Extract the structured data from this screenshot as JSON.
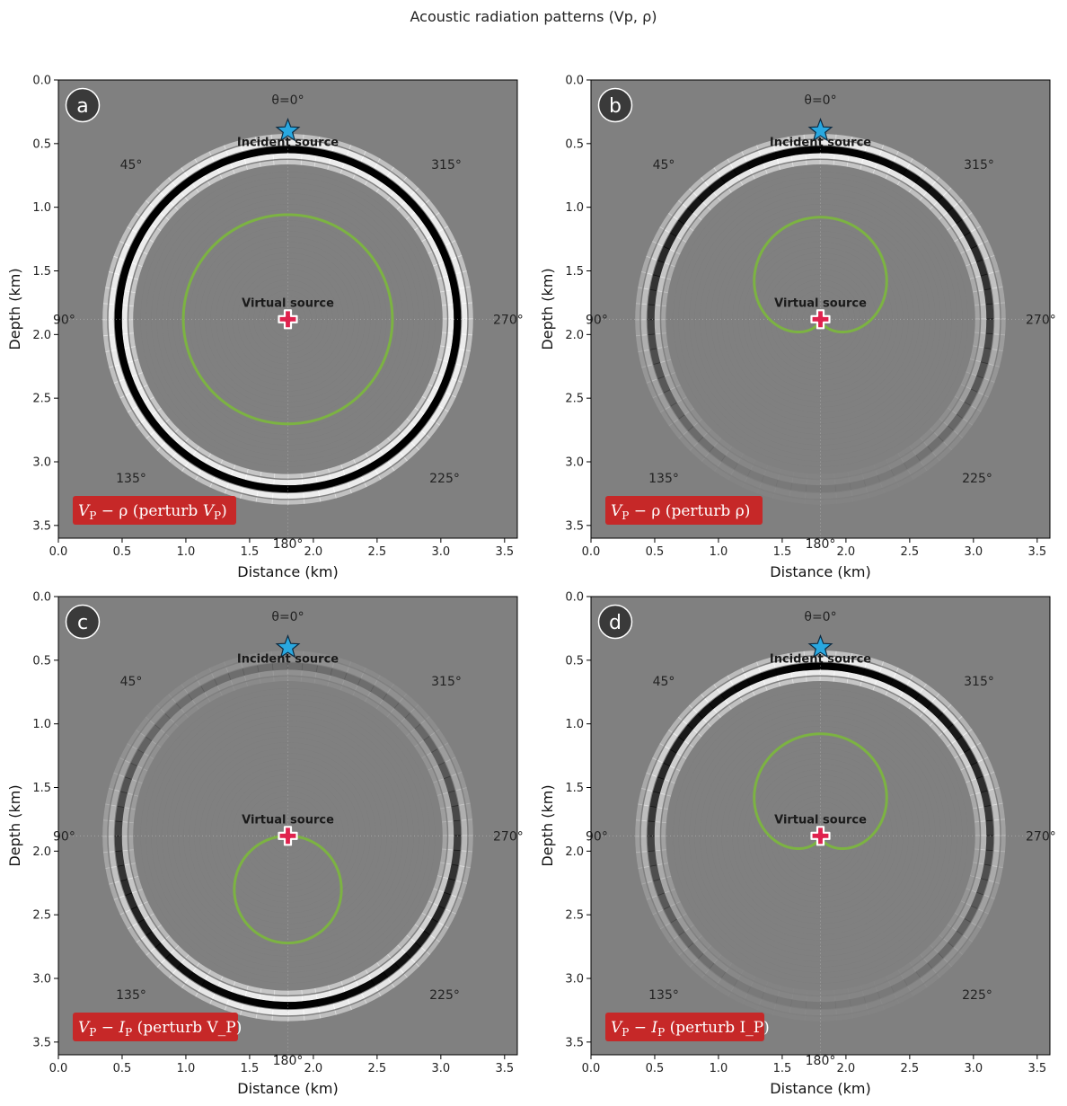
{
  "figure": {
    "title": "Acoustic radiation patterns (Vp, ρ)",
    "xlabel": "Distance (km)",
    "ylabel": "Depth (km)",
    "xticks": [
      "0.0",
      "0.5",
      "1.0",
      "1.5",
      "2.0",
      "2.5",
      "3.0",
      "3.5"
    ],
    "yticks": [
      "0.0",
      "0.5",
      "1.0",
      "1.5",
      "2.0",
      "2.5",
      "3.0",
      "3.5"
    ],
    "colors": {
      "background": "#808080",
      "pattern": "#7cb342",
      "incident_star": "#29a8e0",
      "virtual_cross": "#e0224e",
      "caption_box": "#c62828",
      "letter_badge": "#3a3a3a"
    }
  },
  "chart_data": [
    {
      "type": "radiation-pattern",
      "panel": "a",
      "caption": "V_P − ρ (perturb V_P)",
      "caption_parts": {
        "p1": "V",
        "s1": "P",
        "p2": " − ρ  (perturb ",
        "p3": "V",
        "s3": "P",
        "p4": ")"
      },
      "xlim": [
        0,
        3.6
      ],
      "ylim": [
        3.6,
        0
      ],
      "incident_source": {
        "x": 1.8,
        "depth": 0.4,
        "label": "Incident source"
      },
      "virtual_source": {
        "x": 1.8,
        "depth": 1.88,
        "label": "Virtual source"
      },
      "angle_labels": {
        "t0": "θ=0°",
        "t45": "45°",
        "t90": "90°",
        "t135": "135°",
        "t180": "180°",
        "t225": "225°",
        "t270": "270°",
        "t315": "315°"
      },
      "wavefront_radius_km": 1.33,
      "pattern_function": "isotropic",
      "pattern_radius_km": 0.82,
      "wavefront_amplitude_function": "isotropic",
      "pattern": {
        "theta_deg": [
          0,
          45,
          90,
          135,
          180,
          225,
          270,
          315
        ],
        "amplitude": [
          1,
          1,
          1,
          1,
          1,
          1,
          1,
          1
        ]
      }
    },
    {
      "type": "radiation-pattern",
      "panel": "b",
      "caption": "V_P − ρ (perturb ρ)",
      "caption_parts": {
        "p1": "V",
        "s1": "P",
        "p2": " − ρ  (perturb ρ)",
        "p3": "",
        "s3": "",
        "p4": ""
      },
      "xlim": [
        0,
        3.6
      ],
      "ylim": [
        3.6,
        0
      ],
      "incident_source": {
        "x": 1.8,
        "depth": 0.4,
        "label": "Incident source"
      },
      "virtual_source": {
        "x": 1.8,
        "depth": 1.88,
        "label": "Virtual source"
      },
      "angle_labels": {
        "t0": "θ=0°",
        "t45": "45°",
        "t90": "90°",
        "t135": "135°",
        "t180": "180°",
        "t225": "225°",
        "t270": "270°",
        "t315": "315°"
      },
      "wavefront_radius_km": 1.33,
      "pattern_function": "cardioid-up",
      "pattern_radius_km": 0.8,
      "wavefront_amplitude_function": "cardioid-up",
      "pattern": {
        "theta_deg": [
          0,
          45,
          90,
          135,
          180,
          225,
          270,
          315
        ],
        "amplitude": [
          1.0,
          0.85,
          0.5,
          0.15,
          0.0,
          0.15,
          0.5,
          0.85
        ]
      }
    },
    {
      "type": "radiation-pattern",
      "panel": "c",
      "caption": "V_P − I_P (perturb V_P)",
      "caption_parts": {
        "p1": "V",
        "s1": "P",
        "p2": " − ",
        "p3": "I",
        "s3": "P",
        "p4": "  (perturb V_P)"
      },
      "xlim": [
        0,
        3.6
      ],
      "ylim": [
        3.6,
        0
      ],
      "incident_source": {
        "x": 1.8,
        "depth": 0.4,
        "label": "Incident source"
      },
      "virtual_source": {
        "x": 1.8,
        "depth": 1.88,
        "label": "Virtual source"
      },
      "angle_labels": {
        "t0": "θ=0°",
        "t45": "45°",
        "t90": "90°",
        "t135": "135°",
        "t180": "180°",
        "t225": "225°",
        "t270": "270°",
        "t315": "315°"
      },
      "wavefront_radius_km": 1.33,
      "pattern_function": "circle-down",
      "pattern_radius_km": 0.84,
      "wavefront_amplitude_function": "cos-down",
      "pattern": {
        "theta_deg": [
          0,
          45,
          90,
          135,
          180,
          225,
          270,
          315
        ],
        "amplitude": [
          0.0,
          0.15,
          0.5,
          0.85,
          1.0,
          0.85,
          0.5,
          0.15
        ]
      }
    },
    {
      "type": "radiation-pattern",
      "panel": "d",
      "caption": "V_P − I_P (perturb I_P)",
      "caption_parts": {
        "p1": "V",
        "s1": "P",
        "p2": " − ",
        "p3": "I",
        "s3": "P",
        "p4": "  (perturb I_P)"
      },
      "xlim": [
        0,
        3.6
      ],
      "ylim": [
        3.6,
        0
      ],
      "incident_source": {
        "x": 1.8,
        "depth": 0.4,
        "label": "Incident source"
      },
      "virtual_source": {
        "x": 1.8,
        "depth": 1.88,
        "label": "Virtual source"
      },
      "angle_labels": {
        "t0": "θ=0°",
        "t45": "45°",
        "t90": "90°",
        "t135": "135°",
        "t180": "180°",
        "t225": "225°",
        "t270": "270°",
        "t315": "315°"
      },
      "wavefront_radius_km": 1.33,
      "pattern_function": "cardioid-up",
      "pattern_radius_km": 0.8,
      "wavefront_amplitude_function": "cardioid-up",
      "pattern": {
        "theta_deg": [
          0,
          45,
          90,
          135,
          180,
          225,
          270,
          315
        ],
        "amplitude": [
          1.0,
          0.85,
          0.5,
          0.15,
          0.0,
          0.15,
          0.5,
          0.85
        ]
      }
    }
  ]
}
